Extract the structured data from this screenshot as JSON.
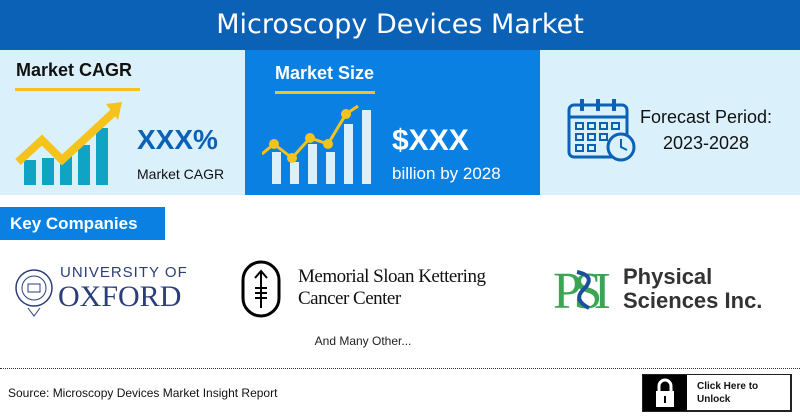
{
  "header": {
    "title": "Microscopy Devices Market"
  },
  "cagr": {
    "heading": "Market CAGR",
    "value": "XXX%",
    "label": "Market CAGR"
  },
  "size": {
    "heading": "Market Size",
    "value": "$XXX",
    "label": "billion by 2028"
  },
  "forecast": {
    "label": "Forecast Period:",
    "range": "2023-2028"
  },
  "key_companies": {
    "heading": "Key Companies",
    "companies": [
      {
        "line1": "UNIVERSITY OF",
        "line2": "OXFORD"
      },
      {
        "line1": "Memorial Sloan Kettering",
        "line2": "Cancer Center"
      },
      {
        "mark": "PSI",
        "line1": "Physical",
        "line2": "Sciences Inc."
      }
    ],
    "more": "And Many Other..."
  },
  "footer": {
    "source": "Source: Microscopy Devices Market Insight Report",
    "unlock": "Click Here to Unlock"
  },
  "colors": {
    "header": "#0b61b5",
    "accent_blue": "#0a80e2",
    "light": "#daf1fc",
    "yellow": "#f5c31c",
    "teal": "#0fa3c4"
  }
}
